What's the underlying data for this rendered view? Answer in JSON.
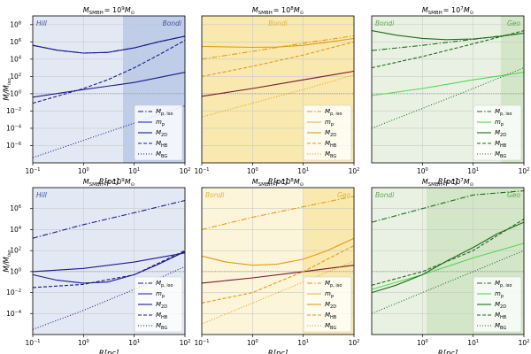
{
  "figure": {
    "ylabel": "M/M_iso",
    "ylabel_main": "M/M",
    "ylabel_sub": "iso",
    "xlabel": "R[pc]"
  },
  "chart_data": [
    {
      "type": "line",
      "row": 0,
      "col": 0,
      "title_prefix": "M",
      "title_sub": "SMBH",
      "title_value": "= 10",
      "title_exp": "9",
      "title_suffix": "M",
      "title_sun": "⊙",
      "theme": {
        "bg": "#e3e9f4",
        "shade": "#b8c8e6",
        "line": "#1a1a8c",
        "line_light": "#2d2db5",
        "label": "#3b4fa3"
      },
      "xscale": "log",
      "yscale": "log",
      "xlim": [
        0.1,
        100
      ],
      "ylim": [
        1e-08,
        1000000000.0
      ],
      "xticks": [
        {
          "v": 0.1,
          "m": "10",
          "e": "−1"
        },
        {
          "v": 1,
          "m": "10",
          "e": "0"
        },
        {
          "v": 10,
          "m": "10",
          "e": "1"
        },
        {
          "v": 100,
          "m": "10",
          "e": "2"
        }
      ],
      "yticks": [
        {
          "v": 100000000.0,
          "m": "10",
          "e": "8"
        },
        {
          "v": 1000000.0,
          "m": "10",
          "e": "6"
        },
        {
          "v": 10000.0,
          "m": "10",
          "e": "4"
        },
        {
          "v": 100,
          "m": "10",
          "e": "2"
        },
        {
          "v": 1,
          "m": "10",
          "e": "0"
        },
        {
          "v": 0.01,
          "m": "10",
          "e": "−2"
        },
        {
          "v": 0.0001,
          "m": "10",
          "e": "−4"
        },
        {
          "v": 1e-06,
          "m": "10",
          "e": "−6"
        }
      ],
      "shade": [
        6,
        100
      ],
      "region_labels": [
        {
          "text": "Hill",
          "pos": "left"
        },
        {
          "text": "Bondi",
          "pos": "right"
        }
      ],
      "hline": 1,
      "series": [
        {
          "name": "M_p,iso",
          "style": "dashdot",
          "x": [
            0.1,
            0.3,
            1,
            3,
            10,
            30,
            100
          ],
          "y": [
            400000.0,
            110000.0,
            50000.0,
            60000.0,
            200000.0,
            1000000.0,
            4500000.0
          ]
        },
        {
          "name": "m_p",
          "style": "solid",
          "x": [
            0.1,
            1,
            10,
            100
          ],
          "y": [
            0.4,
            3,
            20,
            300
          ]
        },
        {
          "name": "M_2D",
          "style": "solid",
          "x": [
            0.1,
            0.3,
            1,
            3,
            10,
            30,
            100
          ],
          "y": [
            400000.0,
            110000.0,
            50000.0,
            60000.0,
            200000.0,
            1000000.0,
            4500000.0
          ]
        },
        {
          "name": "M_HB",
          "style": "dashed",
          "x": [
            0.1,
            0.3,
            1,
            3,
            10,
            30,
            100
          ],
          "y": [
            0.08,
            0.5,
            4,
            40,
            1000.0,
            30000.0,
            1500000.0
          ]
        },
        {
          "name": "M_BG",
          "style": "dotted",
          "x": [
            0.1,
            1,
            10,
            100
          ],
          "y": [
            4e-08,
            4e-06,
            0.0004,
            0.04
          ]
        }
      ]
    },
    {
      "type": "line",
      "row": 0,
      "col": 1,
      "title_prefix": "M",
      "title_sub": "SMBH",
      "title_value": "= 10",
      "title_exp": "8",
      "title_suffix": "M",
      "title_sun": "⊙",
      "theme": {
        "bg": "#fdf5d9",
        "shade": "#f8e6a6",
        "line": "#e59a13",
        "line_light": "#f0b84a",
        "label": "#e0b53c"
      },
      "xscale": "log",
      "yscale": "log",
      "xlim": [
        0.1,
        100
      ],
      "ylim": [
        1e-08,
        1000000000.0
      ],
      "xticks": [
        {
          "v": 0.1,
          "m": "10",
          "e": "−1"
        },
        {
          "v": 1,
          "m": "10",
          "e": "0"
        },
        {
          "v": 10,
          "m": "10",
          "e": "1"
        },
        {
          "v": 100,
          "m": "10",
          "e": "2"
        }
      ],
      "yticks": [],
      "shade": [
        0.1,
        100
      ],
      "region_labels": [
        {
          "text": "Bondi",
          "pos": "center"
        }
      ],
      "hline": 1,
      "series": [
        {
          "name": "M_p,iso",
          "style": "dashdot",
          "x": [
            0.1,
            1,
            10,
            100
          ],
          "y": [
            10000.0,
            80000.0,
            700000.0,
            5000000.0
          ]
        },
        {
          "name": "m_p",
          "style": "solid_dark",
          "x": [
            0.1,
            1,
            10,
            100
          ],
          "y": [
            0.5,
            4,
            40,
            400
          ]
        },
        {
          "name": "M_2D",
          "style": "solid",
          "x": [
            0.1,
            1,
            3,
            10,
            30,
            100
          ],
          "y": [
            300000.0,
            230000.0,
            250000.0,
            400000.0,
            900000.0,
            2500000.0
          ]
        },
        {
          "name": "M_HB",
          "style": "dashed",
          "x": [
            0.1,
            1,
            10,
            100
          ],
          "y": [
            100,
            1500.0,
            30000.0,
            1000000.0
          ]
        },
        {
          "name": "M_BG",
          "style": "dotted",
          "x": [
            0.1,
            1,
            10,
            100
          ],
          "y": [
            0.002,
            0.08,
            3,
            150
          ]
        }
      ]
    },
    {
      "type": "line",
      "row": 0,
      "col": 2,
      "title_prefix": "M",
      "title_sub": "SMBH",
      "title_value": "= 10",
      "title_exp": "7",
      "title_suffix": "M",
      "title_sun": "⊙",
      "theme": {
        "bg": "#e9f2e2",
        "shade": "#cfe4c2",
        "line": "#1e6b1e",
        "line_light": "#55d655",
        "label": "#5aa84a"
      },
      "xscale": "log",
      "yscale": "log",
      "xlim": [
        0.1,
        100
      ],
      "ylim": [
        1e-08,
        1000000000.0
      ],
      "xticks": [
        {
          "v": 1,
          "m": "10",
          "e": "0"
        },
        {
          "v": 10,
          "m": "10",
          "e": "1"
        },
        {
          "v": 100,
          "m": "10",
          "e": "2"
        }
      ],
      "yticks": [],
      "shade": [
        35,
        100
      ],
      "region_labels": [
        {
          "text": "Bondi",
          "pos": "left"
        },
        {
          "text": "Geo",
          "pos": "right"
        }
      ],
      "hline": 1,
      "series": [
        {
          "name": "M_p,iso",
          "style": "dashdot",
          "x": [
            0.1,
            1,
            10,
            100
          ],
          "y": [
            100000.0,
            400000.0,
            2000000.0,
            10000000.0
          ]
        },
        {
          "name": "m_p",
          "style": "solid_light",
          "x": [
            0.1,
            1,
            10,
            100
          ],
          "y": [
            0.6,
            4,
            40,
            300
          ]
        },
        {
          "name": "M_2D",
          "style": "solid",
          "x": [
            0.1,
            0.3,
            1,
            3,
            10,
            30,
            100
          ],
          "y": [
            20000000.0,
            6000000.0,
            2500000.0,
            1800000.0,
            2200000.0,
            4000000.0,
            10000000.0
          ]
        },
        {
          "name": "M_HB",
          "style": "dashed",
          "x": [
            0.1,
            1,
            10,
            100
          ],
          "y": [
            1000.0,
            20000.0,
            600000.0,
            20000000.0
          ]
        },
        {
          "name": "M_BG",
          "style": "dotted",
          "x": [
            0.1,
            1,
            10,
            100
          ],
          "y": [
            0.0001,
            0.02,
            4,
            1000.0
          ]
        }
      ]
    },
    {
      "type": "line",
      "row": 1,
      "col": 0,
      "title_prefix": "M",
      "title_sub": "SMBH",
      "title_value": "= 10",
      "title_exp": "9",
      "title_suffix": "M",
      "title_sun": "⊙",
      "theme": {
        "bg": "#e3e9f4",
        "shade": "#b8c8e6",
        "line": "#1a1a8c",
        "line_light": "#2d2db5",
        "label": "#3b4fa3"
      },
      "xscale": "log",
      "yscale": "log",
      "xlim": [
        0.1,
        100
      ],
      "ylim": [
        1e-06,
        100000000.0
      ],
      "xticks": [
        {
          "v": 0.1,
          "m": "10",
          "e": "−1"
        },
        {
          "v": 1,
          "m": "10",
          "e": "0"
        },
        {
          "v": 10,
          "m": "10",
          "e": "1"
        },
        {
          "v": 100,
          "m": "10",
          "e": "2"
        }
      ],
      "yticks": [
        {
          "v": 1000000.0,
          "m": "10",
          "e": "6"
        },
        {
          "v": 10000.0,
          "m": "10",
          "e": "4"
        },
        {
          "v": 100,
          "m": "10",
          "e": "2"
        },
        {
          "v": 1,
          "m": "10",
          "e": "0"
        },
        {
          "v": 0.01,
          "m": "10",
          "e": "−2"
        },
        {
          "v": 0.0001,
          "m": "10",
          "e": "−4"
        }
      ],
      "shade": null,
      "region_labels": [
        {
          "text": "Hill",
          "pos": "left"
        }
      ],
      "hline": 1,
      "series": [
        {
          "name": "M_p,iso",
          "style": "dashdot",
          "x": [
            0.1,
            1,
            10,
            100
          ],
          "y": [
            1500.0,
            30000.0,
            400000.0,
            6000000.0
          ]
        },
        {
          "name": "m_p",
          "style": "solid",
          "x": [
            0.1,
            1,
            10,
            100
          ],
          "y": [
            1,
            2,
            8,
            60
          ]
        },
        {
          "name": "M_2D",
          "style": "solid",
          "x": [
            0.1,
            0.3,
            1,
            3,
            10,
            30,
            100
          ],
          "y": [
            0.5,
            0.15,
            0.08,
            0.1,
            0.5,
            5,
            80
          ]
        },
        {
          "name": "M_HB",
          "style": "dashed",
          "x": [
            0.1,
            1,
            10,
            100
          ],
          "y": [
            0.03,
            0.06,
            0.5,
            100
          ]
        },
        {
          "name": "M_BG",
          "style": "dotted",
          "x": [
            0.1,
            1,
            10,
            100
          ],
          "y": [
            3e-06,
            0.0002,
            0.02,
            3
          ]
        }
      ]
    },
    {
      "type": "line",
      "row": 1,
      "col": 1,
      "title_prefix": "M",
      "title_sub": "SMBH",
      "title_value": "= 10",
      "title_exp": "8",
      "title_suffix": "M",
      "title_sun": "⊙",
      "theme": {
        "bg": "#fdf5d9",
        "shade": "#f8e6a6",
        "line": "#e59a13",
        "line_light": "#f0b84a",
        "label": "#e0b53c"
      },
      "xscale": "log",
      "yscale": "log",
      "xlim": [
        0.1,
        100
      ],
      "ylim": [
        1e-06,
        100000000.0
      ],
      "xticks": [
        {
          "v": 0.1,
          "m": "10",
          "e": "−1"
        },
        {
          "v": 1,
          "m": "10",
          "e": "0"
        },
        {
          "v": 10,
          "m": "10",
          "e": "1"
        },
        {
          "v": 100,
          "m": "10",
          "e": "2"
        }
      ],
      "yticks": [],
      "shade": [
        10,
        100
      ],
      "region_labels": [
        {
          "text": "Bondi",
          "pos": "left"
        },
        {
          "text": "Geo",
          "pos": "right"
        }
      ],
      "hline": 1,
      "series": [
        {
          "name": "M_p,iso",
          "style": "dashdot",
          "x": [
            0.1,
            1,
            10,
            100
          ],
          "y": [
            10000.0,
            150000.0,
            1500000.0,
            15000000.0
          ]
        },
        {
          "name": "m_p",
          "style": "solid_dark",
          "x": [
            0.1,
            1,
            10,
            100
          ],
          "y": [
            0.08,
            0.25,
            1,
            4
          ]
        },
        {
          "name": "M_2D",
          "style": "solid",
          "x": [
            0.1,
            0.3,
            1,
            3,
            10,
            30,
            100
          ],
          "y": [
            30,
            8,
            4,
            5,
            15,
            100,
            1500.0
          ]
        },
        {
          "name": "M_HB",
          "style": "dashed",
          "x": [
            0.1,
            1,
            10,
            100
          ],
          "y": [
            0.001,
            0.01,
            1,
            300
          ]
        },
        {
          "name": "M_BG",
          "style": "dotted",
          "x": [
            0.1,
            1,
            10,
            100
          ],
          "y": [
            1e-05,
            0.001,
            0.1,
            10
          ]
        }
      ]
    },
    {
      "type": "line",
      "row": 1,
      "col": 2,
      "title_prefix": "M",
      "title_sub": "SMBH",
      "title_value": "= 10",
      "title_exp": "7",
      "title_suffix": "M",
      "title_sun": "⊙",
      "theme": {
        "bg": "#e9f2e2",
        "shade": "#cfe4c2",
        "line": "#1e6b1e",
        "line_light": "#55d655",
        "label": "#5aa84a"
      },
      "xscale": "log",
      "yscale": "log",
      "xlim": [
        0.1,
        100
      ],
      "ylim": [
        1e-06,
        100000000.0
      ],
      "xticks": [
        {
          "v": 1,
          "m": "10",
          "e": "0"
        },
        {
          "v": 10,
          "m": "10",
          "e": "1"
        },
        {
          "v": 100,
          "m": "10",
          "e": "2"
        }
      ],
      "yticks": [],
      "shade": [
        1.2,
        100
      ],
      "region_labels": [
        {
          "text": "Bondi",
          "pos": "left"
        },
        {
          "text": "Geo",
          "pos": "right"
        }
      ],
      "hline": 1,
      "series": [
        {
          "name": "M_p,iso",
          "style": "dashdot",
          "x": [
            0.1,
            1,
            10,
            100
          ],
          "y": [
            50000.0,
            1000000.0,
            20000000.0,
            50000000.0
          ]
        },
        {
          "name": "m_p",
          "style": "solid_light",
          "x": [
            0.1,
            1,
            10,
            100
          ],
          "y": [
            0.02,
            0.5,
            20,
            500
          ]
        },
        {
          "name": "M_2D",
          "style": "solid",
          "x": [
            0.1,
            0.3,
            1,
            3,
            10,
            30,
            100
          ],
          "y": [
            0.01,
            0.05,
            0.5,
            10,
            200,
            4000.0,
            50000.0
          ]
        },
        {
          "name": "M_HB",
          "style": "dashed",
          "x": [
            0.1,
            1,
            10,
            100
          ],
          "y": [
            0.05,
            1,
            100,
            100000.0
          ]
        },
        {
          "name": "M_BG",
          "style": "dotted",
          "x": [
            0.1,
            1,
            10,
            100
          ],
          "y": [
            0.0001,
            0.01,
            1,
            100
          ]
        }
      ]
    }
  ],
  "legend": [
    {
      "sym": "M",
      "sub": "p, iso",
      "style": "dashdot"
    },
    {
      "sym": "m",
      "sub": "p",
      "style": "solid_light"
    },
    {
      "sym": "M",
      "sub": "2D",
      "style": "solid"
    },
    {
      "sym": "M",
      "sub": "HB",
      "style": "dashed"
    },
    {
      "sym": "M",
      "sub": "BG",
      "style": "dotted"
    }
  ]
}
